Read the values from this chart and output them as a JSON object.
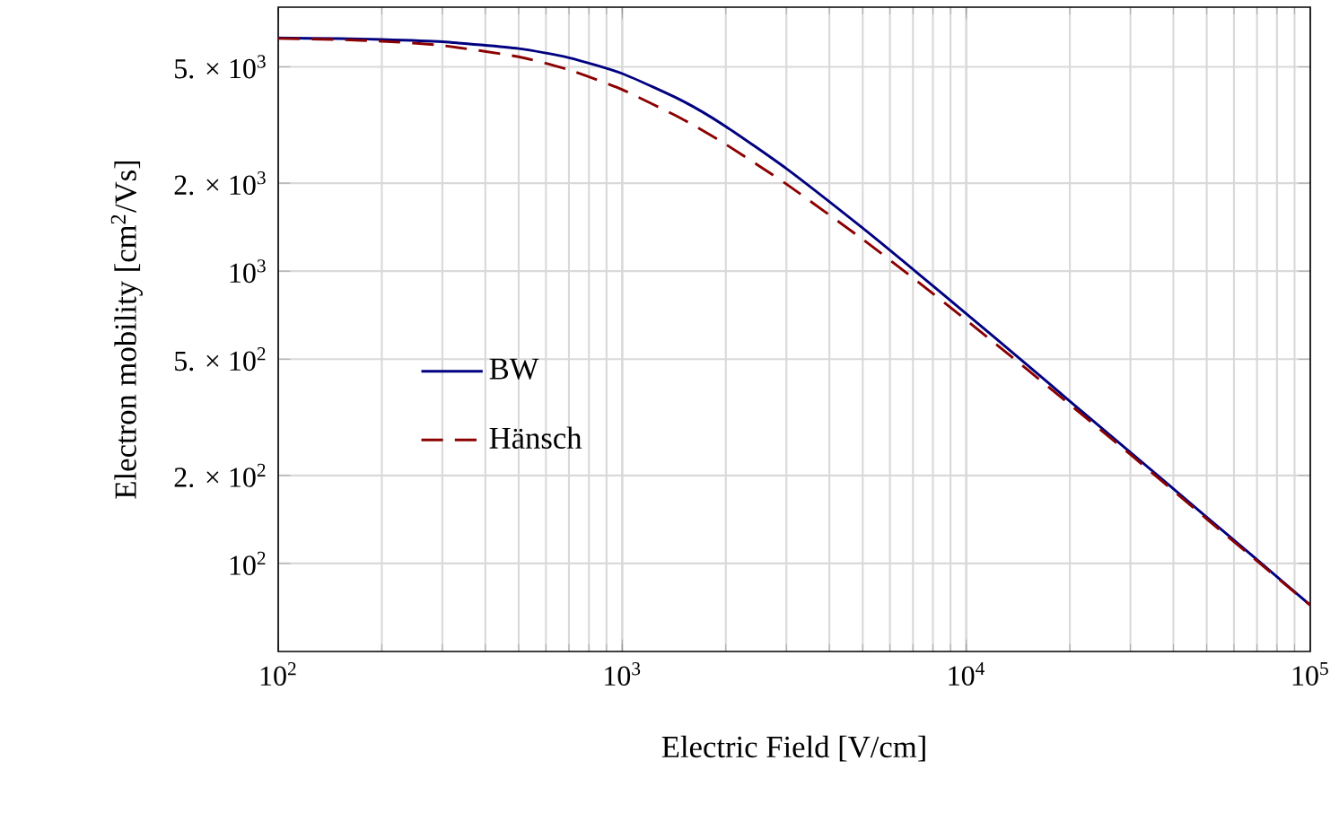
{
  "chart_data": {
    "type": "line",
    "xlabel": "Electric Field [V/cm]",
    "ylabel": "Electron mobility [cm$^{2}$/Vs]",
    "log": "xy",
    "grid": true,
    "legend": "left",
    "x": [
      100,
      150,
      200,
      300,
      500,
      700,
      1000,
      1500,
      2000,
      3000,
      5000,
      7000,
      10000,
      15000,
      20000,
      30000,
      50000,
      70000,
      100000
    ],
    "xlim": [
      100,
      100000
    ],
    "xticks": [
      {
        "value": 100,
        "label": "10$^{2}$"
      },
      {
        "value": 1000,
        "label": "10$^{3}$"
      },
      {
        "value": 10000,
        "label": "10$^{4}$"
      },
      {
        "value": 100000,
        "label": "10$^{5}$"
      }
    ],
    "ylim": [
      50,
      8000
    ],
    "yticks": [
      {
        "value": 100,
        "label": "10$^{2}$"
      },
      {
        "value": 200,
        "label": "2. × 10$^{2}$"
      },
      {
        "value": 500,
        "label": "5. × 10$^{2}$"
      },
      {
        "value": 1000,
        "label": "10$^{3}$"
      },
      {
        "value": 2000,
        "label": "2. × 10$^{3}$"
      },
      {
        "value": 5000,
        "label": "5. × 10$^{3}$"
      }
    ],
    "series": [
      {
        "name": "BW",
        "color": "#000080",
        "line_style": "solid",
        "values": [
          6276,
          6246,
          6206,
          6093,
          5772,
          5372,
          4741,
          3818,
          3126,
          2243,
          1404,
          1015,
          715,
          479,
          359,
          240,
          144,
          103,
          72
        ]
      },
      {
        "name": "Hänsch",
        "color": "#8b0000",
        "line_style": "dashed",
        "values": [
          6252,
          6195,
          6118,
          5917,
          5411,
          4881,
          4178,
          3308,
          2715,
          1986,
          1285,
          948,
          680,
          462,
          350,
          236,
          142,
          102,
          72
        ]
      }
    ]
  }
}
